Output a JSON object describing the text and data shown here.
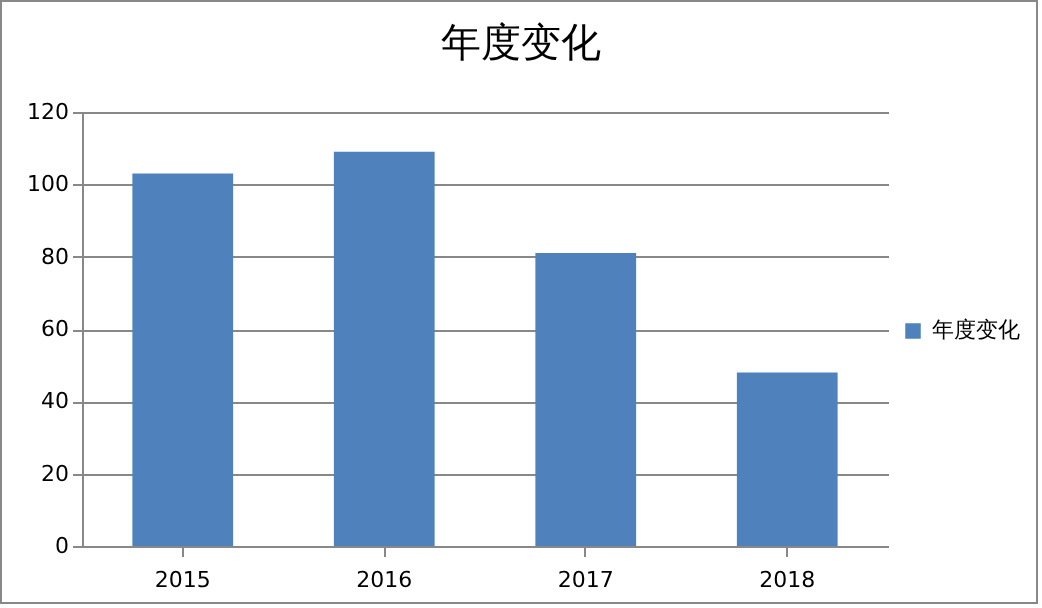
{
  "chart_data": {
    "type": "bar",
    "title": "年度变化",
    "categories": [
      "2015",
      "2016",
      "2017",
      "2018"
    ],
    "series": [
      {
        "name": "年度变化",
        "color": "#4f81bd",
        "values": [
          103,
          109,
          81,
          48
        ]
      }
    ],
    "ylim": [
      0,
      120
    ],
    "yticks": [
      0,
      20,
      40,
      60,
      80,
      100,
      120
    ],
    "grid": "y",
    "legend": "right"
  }
}
